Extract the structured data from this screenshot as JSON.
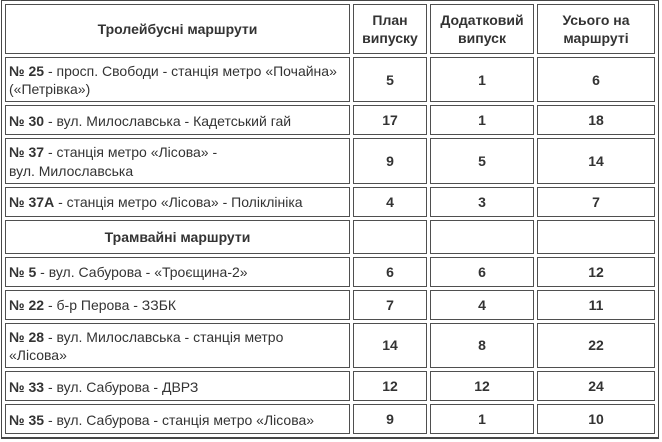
{
  "table": {
    "columns": [
      "Тролейбусні маршрути",
      "План випуску",
      "Додатковий випуск",
      "Усього на маршруті"
    ],
    "rows": [
      {
        "type": "route",
        "num": "№ 25",
        "desc": " - просп. Свободи - станція метро «Почайна»\n(«Петрівка»)",
        "plan": "5",
        "extra": "1",
        "total": "6"
      },
      {
        "type": "route",
        "num": "№ 30",
        "desc": " - вул. Милославська - Кадетський гай",
        "plan": "17",
        "extra": "1",
        "total": "18"
      },
      {
        "type": "route",
        "num": "№ 37",
        "desc": " - станція метро «Лісова» -\nвул. Милославська",
        "plan": "9",
        "extra": "5",
        "total": "14"
      },
      {
        "type": "route",
        "num": "№ 37А",
        "desc": " - станція метро «Лісова» - Поліклініка",
        "plan": "4",
        "extra": "3",
        "total": "7"
      },
      {
        "type": "section",
        "label": "Трамвайні маршрути"
      },
      {
        "type": "route",
        "num": "№ 5",
        "desc": " - вул. Сабурова - «Троєщина-2»",
        "plan": "6",
        "extra": "6",
        "total": "12"
      },
      {
        "type": "route",
        "num": "№ 22",
        "desc": " - б-р Перова - ЗЗБК",
        "plan": "7",
        "extra": "4",
        "total": "11"
      },
      {
        "type": "route",
        "num": "№ 28",
        "desc": " - вул. Милославська - станція метро\n«Лісова»",
        "plan": "14",
        "extra": "8",
        "total": "22"
      },
      {
        "type": "route",
        "num": "№ 33",
        "desc": " - вул. Сабурова - ДВРЗ",
        "plan": "12",
        "extra": "12",
        "total": "24"
      },
      {
        "type": "route",
        "num": "№ 35",
        "desc": " - вул. Сабурова - станція метро «Лісова»",
        "plan": "9",
        "extra": "1",
        "total": "10"
      }
    ]
  },
  "colors": {
    "text": "#333333",
    "cell_border": "#4f4f4f",
    "outer_border": "#474747",
    "background": "#ffffff"
  }
}
